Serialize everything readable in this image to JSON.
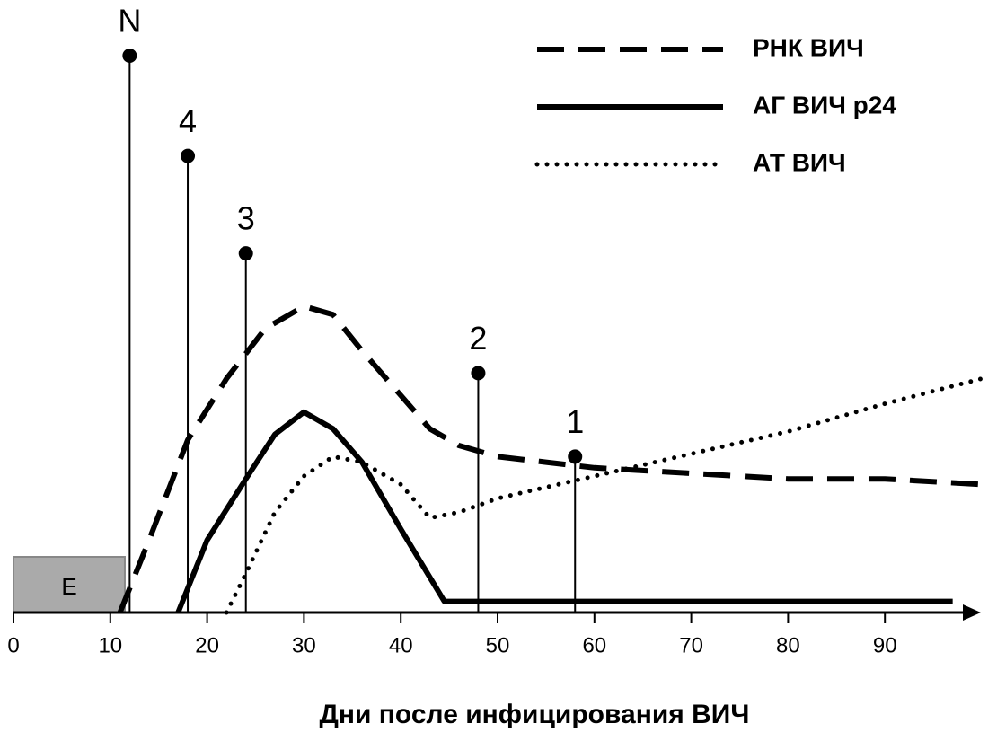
{
  "chart_data": {
    "type": "line",
    "xlabel": "Дни после инфицирования ВИЧ",
    "xlim": [
      0,
      100
    ],
    "xticks": [
      0,
      10,
      20,
      30,
      40,
      50,
      60,
      70,
      80,
      90
    ],
    "ylim": [
      0,
      100
    ],
    "series": [
      {
        "name": "РНК ВИЧ",
        "color": "#000",
        "style": "dashed",
        "x": [
          11,
          14,
          18,
          22,
          26,
          30,
          33,
          36,
          40,
          43,
          46,
          50,
          55,
          60,
          70,
          80,
          90,
          100
        ],
        "values": [
          0,
          13,
          31,
          42,
          51,
          55,
          53.5,
          47,
          39,
          33,
          30,
          28,
          27,
          26,
          25,
          24,
          24,
          23
        ]
      },
      {
        "name": "АГ ВИЧ p24",
        "color": "#000",
        "style": "solid",
        "x": [
          17,
          20,
          24,
          27,
          30,
          33,
          36,
          40,
          44.5,
          97
        ],
        "values": [
          0,
          13,
          24,
          32,
          36,
          33,
          27,
          15,
          2,
          2
        ]
      },
      {
        "name": "АТ ВИЧ",
        "color": "#000",
        "style": "dotted",
        "x": [
          22,
          24,
          27,
          30,
          33,
          36,
          40,
          43,
          46,
          50,
          60,
          70,
          80,
          90,
          100
        ],
        "values": [
          0,
          7,
          18,
          24.5,
          28,
          27,
          23,
          17,
          18,
          20.5,
          24.5,
          28.5,
          32.5,
          37.5,
          42
        ]
      }
    ],
    "markers": [
      {
        "label": "N",
        "x": 12,
        "y": 100
      },
      {
        "label": "4",
        "x": 18,
        "y": 82
      },
      {
        "label": "3",
        "x": 24,
        "y": 64.5
      },
      {
        "label": "2",
        "x": 48,
        "y": 43
      },
      {
        "label": "1",
        "x": 58,
        "y": 28
      }
    ],
    "eclipse": {
      "label": "E",
      "x": [
        0,
        11.5
      ],
      "height": 10
    }
  }
}
